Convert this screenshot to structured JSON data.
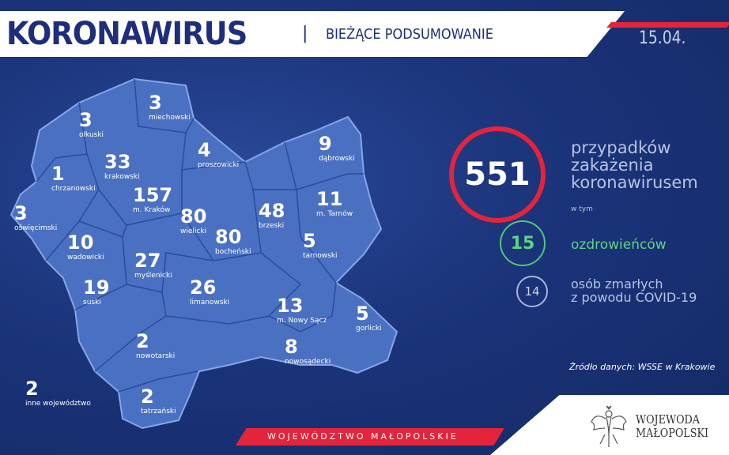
{
  "header": {
    "title": "KORONAWIRUS",
    "separator": "|",
    "subtitle": "BIEŻĄCE PODSUMOWANIE",
    "date": "15.04."
  },
  "regions": [
    {
      "value": "3",
      "name": "olkuski"
    },
    {
      "value": "3",
      "name": "miechowski"
    },
    {
      "value": "33",
      "name": "krakowski"
    },
    {
      "value": "4",
      "name": "proszowicki"
    },
    {
      "value": "9",
      "name": "dąbrowski"
    },
    {
      "value": "1",
      "name": "chrzanowski"
    },
    {
      "value": "157",
      "name": "m. Kraków"
    },
    {
      "value": "11",
      "name": "m. Tarnów"
    },
    {
      "value": "80",
      "name": "wielicki"
    },
    {
      "value": "48",
      "name": "brzeski"
    },
    {
      "value": "3",
      "name": "oświęcimski"
    },
    {
      "value": "10",
      "name": "wadowicki"
    },
    {
      "value": "80",
      "name": "bocheński"
    },
    {
      "value": "5",
      "name": "tarnowski"
    },
    {
      "value": "27",
      "name": "myślenicki"
    },
    {
      "value": "19",
      "name": "suski"
    },
    {
      "value": "26",
      "name": "limanowski"
    },
    {
      "value": "13",
      "name": "m. Nowy Sącz"
    },
    {
      "value": "5",
      "name": "gorlicki"
    },
    {
      "value": "2",
      "name": "nowotarski"
    },
    {
      "value": "8",
      "name": "nowosądecki"
    },
    {
      "value": "2",
      "name": "inne województwo"
    },
    {
      "value": "2",
      "name": "tatrzański"
    }
  ],
  "summary": {
    "total": "551",
    "total_label_1": "przypadków",
    "total_label_2": "zakażenia",
    "total_label_3": "koronawirusem",
    "including": "w tym",
    "recovered": "15",
    "recovered_label": "ozdrowieńców",
    "deaths": "14",
    "deaths_label_1": "osób zmarłych",
    "deaths_label_2": "z powodu COVID-19",
    "source": "Źródło danych: WSSE w Krakowie"
  },
  "footer": {
    "band": "WOJEWÓDZTWO MAŁOPOLSKIE",
    "logo_line1": "WOJEWODA",
    "logo_line2": "MAŁOPOLSKI"
  },
  "colors": {
    "background": "#1b347a",
    "map_fill": "#4a70c2",
    "accent_red": "#e3243b",
    "recovered_green": "#5fd487"
  }
}
